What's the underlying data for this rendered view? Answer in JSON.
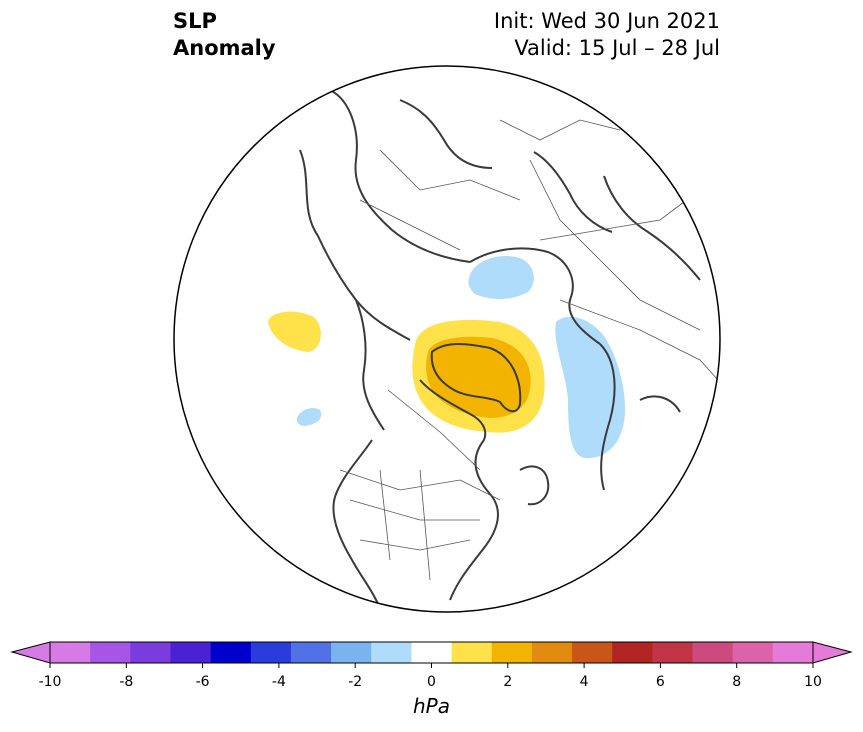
{
  "header": {
    "title_line1": "SLP",
    "title_line2": "Anomaly",
    "init": "Init: Wed 30 Jun 2021",
    "valid": "Valid: 15 Jul – 28 Jul"
  },
  "colorbar": {
    "unit": "hPa",
    "ticks": [
      "-10",
      "-8",
      "-6",
      "-4",
      "-2",
      "0",
      "2",
      "4",
      "6",
      "8",
      "10"
    ],
    "levels": [
      -10,
      -9,
      -8,
      -7,
      -6,
      -5,
      -4,
      -3,
      -2,
      -1,
      1,
      2,
      3,
      4,
      5,
      6,
      7,
      8,
      9,
      10
    ],
    "colors": [
      "#d67ae6",
      "#a656e6",
      "#7a3cdc",
      "#4a22d4",
      "#0000cc",
      "#2a3cdc",
      "#5072e6",
      "#7ab4f0",
      "#b0dcfc",
      "#ffffff",
      "#ffe24a",
      "#f2b400",
      "#e08a10",
      "#c85618",
      "#b02422",
      "#c03446",
      "#cc4a7e",
      "#dc62aa",
      "#e67ad8"
    ],
    "extend_low": "#d67ae6",
    "extend_high": "#e67ad8"
  },
  "map_colors": {
    "coast": "#3a3a3a",
    "borders": "#555555",
    "pos1": "#ffe24a",
    "pos2": "#f2b400",
    "neg1": "#b0dcfc"
  }
}
